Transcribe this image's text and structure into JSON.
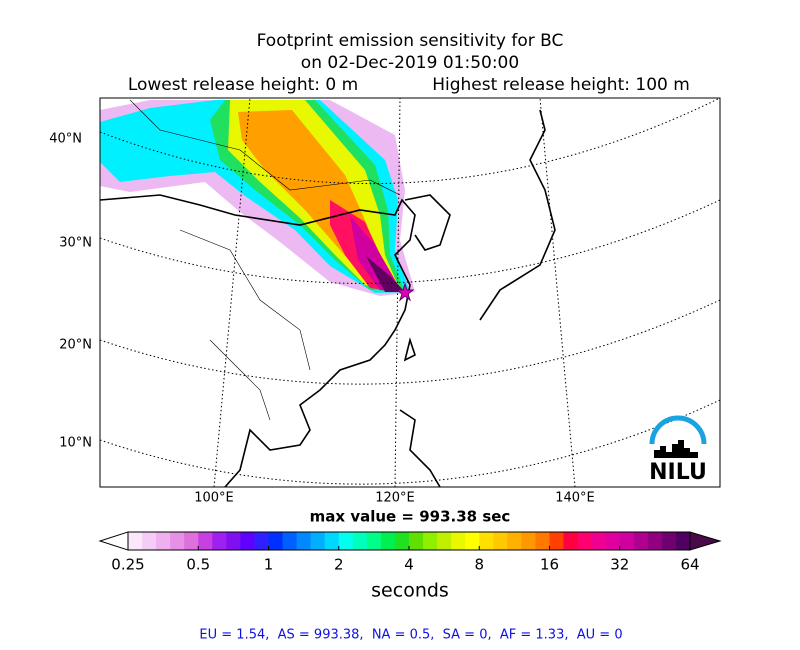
{
  "title": {
    "line1": "Footprint emission sensitivity for BC",
    "line2": "on 02-Dec-2019 01:50:00",
    "lowest": "Lowest release height: 0 m",
    "highest": "Highest release height: 100 m"
  },
  "map": {
    "lat_labels": [
      "40°N",
      "30°N",
      "20°N",
      "10°N"
    ],
    "lon_labels": [
      "100°E",
      "120°E",
      "140°E"
    ],
    "logo": "NILU"
  },
  "max_value": "max value = 993.38 sec",
  "colorbar": {
    "scale": "log",
    "ticks": [
      0.25,
      0.5,
      1,
      2,
      4,
      8,
      16,
      32,
      64
    ],
    "label": "seconds",
    "under_color": "#ffffff",
    "over_color": "#4a0a4a",
    "colors": [
      "#fbe7fb",
      "#f5ccf5",
      "#eeb0ee",
      "#e690e6",
      "#dd70dd",
      "#c840e0",
      "#a020f0",
      "#8010f0",
      "#6000ff",
      "#3020ff",
      "#0030ff",
      "#0060ff",
      "#0088ff",
      "#00b0ff",
      "#00d8ff",
      "#00ffee",
      "#00ffbb",
      "#00ff88",
      "#00f050",
      "#20e020",
      "#60e000",
      "#90ee00",
      "#c0f000",
      "#e8f800",
      "#ffff00",
      "#ffe000",
      "#ffc800",
      "#ffb000",
      "#ff9800",
      "#ff7800",
      "#ff4000",
      "#ff0040",
      "#ff0070",
      "#f00090",
      "#e000a0",
      "#d000a0",
      "#b00090",
      "#900080",
      "#700070",
      "#500060"
    ]
  },
  "footer": "EU = 1.54,  AS = 993.38,  NA = 0.5,  SA = 0,  AF = 1.33,  AU = 0"
}
